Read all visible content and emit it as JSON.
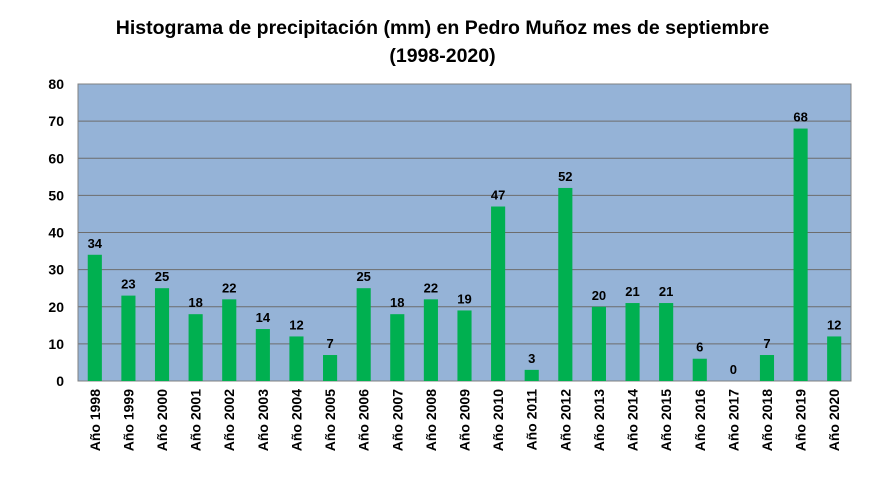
{
  "chart_data": {
    "type": "bar",
    "title_line1": "Histograma de precipitación (mm) en Pedro Muñoz mes de septiembre",
    "title_line2": "(1998-2020)",
    "categories": [
      "Año 1998",
      "Año 1999",
      "Año 2000",
      "Año 2001",
      "Año 2002",
      "Año 2003",
      "Año 2004",
      "Año 2005",
      "Año 2006",
      "Año 2007",
      "Año 2008",
      "Año 2009",
      "Año 2010",
      "Año 2011",
      "Año 2012",
      "Año 2013",
      "Año 2014",
      "Año 2015",
      "Año 2016",
      "Año 2017",
      "Año 2018",
      "Año 2019",
      "Año 2020"
    ],
    "values": [
      34,
      23,
      25,
      18,
      22,
      14,
      12,
      7,
      25,
      18,
      22,
      19,
      47,
      3,
      52,
      20,
      21,
      21,
      6,
      0,
      7,
      68,
      12
    ],
    "ylim": [
      0,
      80
    ],
    "yticks": [
      0,
      10,
      20,
      30,
      40,
      50,
      60,
      70,
      80
    ],
    "grid": true,
    "legend": "none",
    "bar_color": "#00b050",
    "plot_background": "#95b3d7",
    "gridline_color": "#6d6d6d",
    "data_labels": true
  }
}
